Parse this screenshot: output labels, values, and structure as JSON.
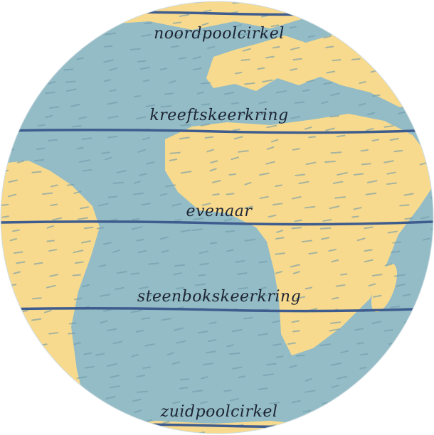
{
  "lines": [
    {
      "label": "noordpoolcirkel"
    },
    {
      "label": "kreeftskeerkring"
    },
    {
      "label": "evenaar"
    },
    {
      "label": "steenbokskeerkring"
    },
    {
      "label": "zuidpoolcirkel"
    }
  ]
}
